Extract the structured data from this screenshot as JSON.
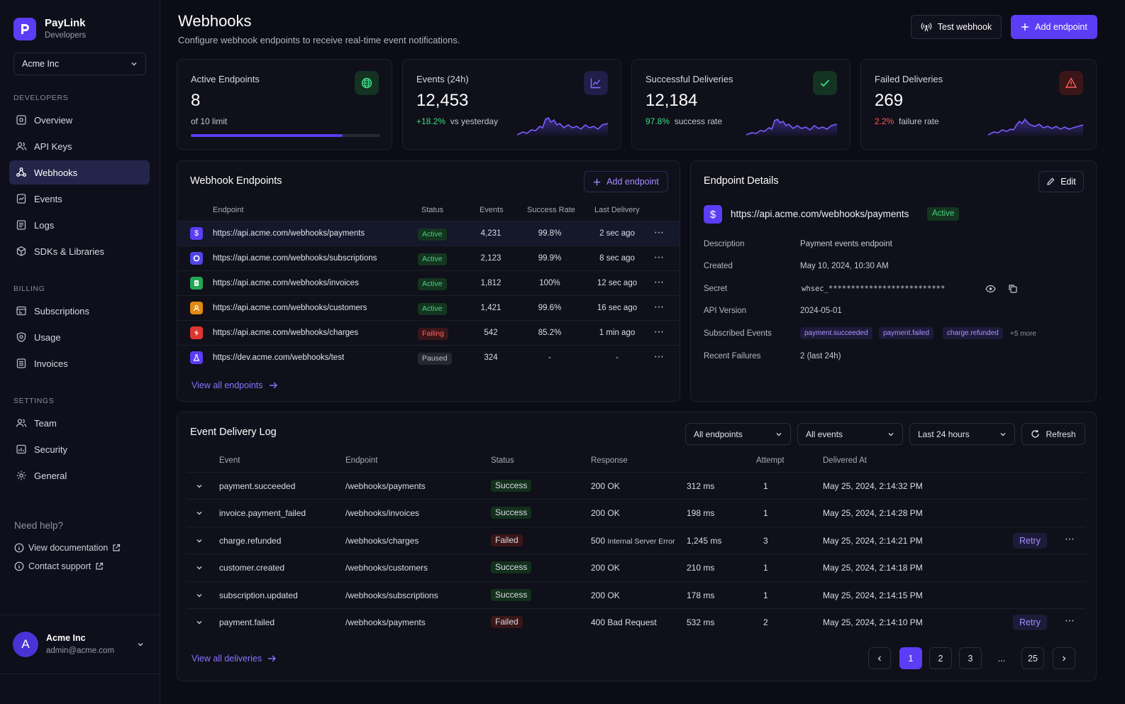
{
  "brand": {
    "name": "PayLink",
    "sub": "Developers"
  },
  "org": {
    "selected": "Acme Inc"
  },
  "nav": {
    "developers_label": "DEVELOPERS",
    "developers": [
      "Overview",
      "API Keys",
      "Webhooks",
      "Events",
      "Logs",
      "SDKs & Libraries"
    ],
    "billing_label": "BILLING",
    "billing": [
      "Subscriptions",
      "Usage",
      "Invoices"
    ],
    "settings_label": "SETTINGS",
    "settings": [
      "Team",
      "Security",
      "General"
    ],
    "active": "Webhooks"
  },
  "help": {
    "title": "Need help?",
    "docs": "View documentation",
    "support": "Contact support"
  },
  "user": {
    "initial": "A",
    "name": "Acme Inc",
    "email": "admin@acme.com"
  },
  "header": {
    "title": "Webhooks",
    "subtitle": "Configure webhook endpoints to receive real-time event notifications.",
    "test_button": "Test webhook",
    "add_button": "Add endpoint"
  },
  "stats": {
    "active": {
      "title": "Active Endpoints",
      "value": "8",
      "sub": "of 10 limit",
      "progress": 0.8
    },
    "events": {
      "title": "Events (24h)",
      "value": "12,453",
      "delta": "+18.2%",
      "sub": "vs yesterday"
    },
    "success": {
      "title": "Successful Deliveries",
      "value": "12,184",
      "pct": "97.8%",
      "sub": "success rate"
    },
    "failed": {
      "title": "Failed Deliveries",
      "value": "269",
      "pct": "2.2%",
      "sub": "failure rate"
    }
  },
  "endpoints": {
    "title": "Webhook Endpoints",
    "add_button": "Add endpoint",
    "columns": [
      "Endpoint",
      "Status",
      "Events",
      "Success Rate",
      "Last Delivery"
    ],
    "rows": [
      {
        "url": "https://api.acme.com/webhooks/payments",
        "status": "Active",
        "events": "4,231",
        "rate": "99.8%",
        "last": "2 sec ago",
        "icon": "dollar-icon",
        "color": "#5b3df5"
      },
      {
        "url": "https://api.acme.com/webhooks/subscriptions",
        "status": "Active",
        "events": "2,123",
        "rate": "99.9%",
        "last": "8 sec ago",
        "icon": "circle-icon",
        "color": "#4f46e5"
      },
      {
        "url": "https://api.acme.com/webhooks/invoices",
        "status": "Active",
        "events": "1,812",
        "rate": "100%",
        "last": "12 sec ago",
        "icon": "document-icon",
        "color": "#22a653"
      },
      {
        "url": "https://api.acme.com/webhooks/customers",
        "status": "Active",
        "events": "1,421",
        "rate": "99.6%",
        "last": "16 sec ago",
        "icon": "user-icon",
        "color": "#e08a12"
      },
      {
        "url": "https://api.acme.com/webhooks/charges",
        "status": "Failing",
        "events": "542",
        "rate": "85.2%",
        "last": "1 min ago",
        "icon": "bolt-icon",
        "color": "#e0352f"
      },
      {
        "url": "https://dev.acme.com/webhooks/test",
        "status": "Paused",
        "events": "324",
        "rate": "-",
        "last": "-",
        "icon": "flask-icon",
        "color": "#5b3df5"
      }
    ],
    "view_all": "View all endpoints"
  },
  "details": {
    "title": "Endpoint Details",
    "edit": "Edit",
    "url": "https://api.acme.com/webhooks/payments",
    "status": "Active",
    "fields": {
      "description_label": "Description",
      "description": "Payment events endpoint",
      "created_label": "Created",
      "created": "May 10, 2024, 10:30 AM",
      "secret_label": "Secret",
      "secret": "whsec_**************************",
      "version_label": "API Version",
      "version": "2024-05-01",
      "events_label": "Subscribed Events",
      "events": [
        "payment.succeeded",
        "payment.failed",
        "charge.refunded"
      ],
      "more": "+5 more",
      "failures_label": "Recent Failures",
      "failures": "2 (last 24h)"
    }
  },
  "log": {
    "title": "Event Delivery Log",
    "filters": {
      "endpoint": "All endpoints",
      "events": "All events",
      "range": "Last 24 hours"
    },
    "refresh": "Refresh",
    "columns": [
      "Event",
      "Endpoint",
      "Status",
      "Response",
      "Attempt",
      "Delivered At"
    ],
    "rows": [
      {
        "event": "payment.succeeded",
        "endpoint": "/webhooks/payments",
        "status": "Success",
        "code": "200 OK",
        "detail": "",
        "time": "312 ms",
        "attempt": "1",
        "at": "May 25, 2024, 2:14:32 PM",
        "retry": ""
      },
      {
        "event": "invoice.payment_failed",
        "endpoint": "/webhooks/invoices",
        "status": "Success",
        "code": "200 OK",
        "detail": "",
        "time": "198 ms",
        "attempt": "1",
        "at": "May 25, 2024, 2:14:28 PM",
        "retry": ""
      },
      {
        "event": "charge.refunded",
        "endpoint": "/webhooks/charges",
        "status": "Failed",
        "code": "500",
        "detail": "Internal Server Error",
        "time": "1,245 ms",
        "attempt": "3",
        "at": "May 25, 2024, 2:14:21 PM",
        "retry": "Retry"
      },
      {
        "event": "customer.created",
        "endpoint": "/webhooks/customers",
        "status": "Success",
        "code": "200 OK",
        "detail": "",
        "time": "210 ms",
        "attempt": "1",
        "at": "May 25, 2024, 2:14:18 PM",
        "retry": ""
      },
      {
        "event": "subscription.updated",
        "endpoint": "/webhooks/subscriptions",
        "status": "Success",
        "code": "200 OK",
        "detail": "",
        "time": "178 ms",
        "attempt": "1",
        "at": "May 25, 2024, 2:14:15 PM",
        "retry": ""
      },
      {
        "event": "payment.failed",
        "endpoint": "/webhooks/payments",
        "status": "Failed",
        "code": "400 Bad Request",
        "detail": "",
        "time": "532 ms",
        "attempt": "2",
        "at": "May 25, 2024, 2:14:10 PM",
        "retry": "Retry"
      }
    ],
    "view_all": "View all deliveries",
    "pages": [
      "1",
      "2",
      "3",
      "...",
      "25"
    ],
    "current_page": "1"
  },
  "colors": {
    "accent": "#5b3df5",
    "success": "#3ddc84",
    "danger": "#ff5a5a",
    "bg": "#0b0c15"
  }
}
